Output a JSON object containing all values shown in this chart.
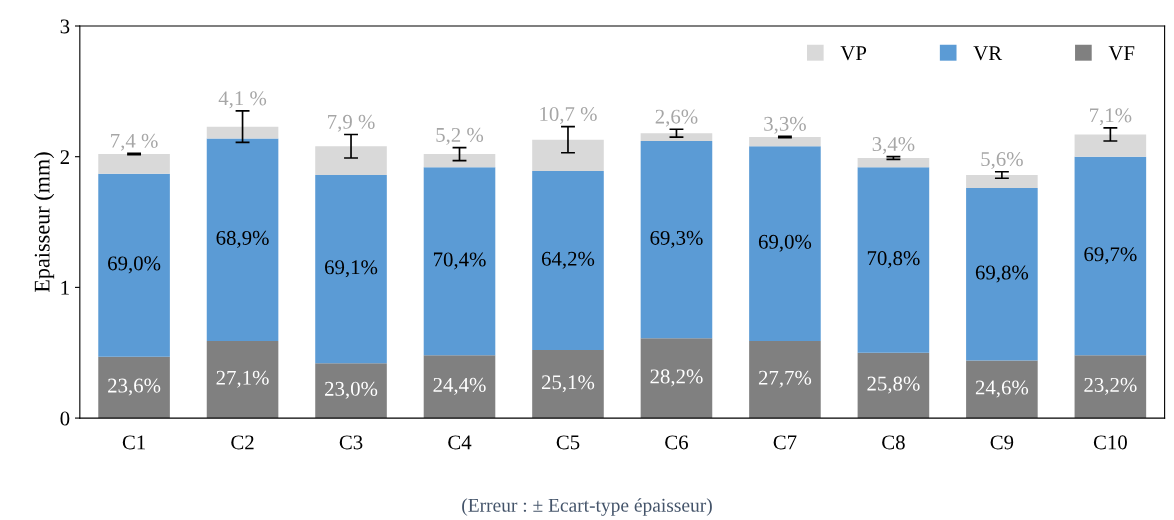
{
  "chart_data": {
    "type": "bar",
    "stacked": true,
    "ylabel": "Epaisseur (mm)",
    "categories": [
      "C1",
      "C2",
      "C3",
      "C4",
      "C5",
      "C6",
      "C7",
      "C8",
      "C9",
      "C10"
    ],
    "series": [
      {
        "name": "VF",
        "color": "#808080",
        "values": [
          0.47,
          0.59,
          0.42,
          0.48,
          0.52,
          0.61,
          0.59,
          0.5,
          0.44,
          0.48
        ]
      },
      {
        "name": "VR",
        "color": "#5b9bd5",
        "values": [
          1.4,
          1.55,
          1.44,
          1.44,
          1.37,
          1.51,
          1.49,
          1.42,
          1.32,
          1.52
        ]
      },
      {
        "name": "VP",
        "color": "#d9d9d9",
        "values": [
          0.15,
          0.09,
          0.22,
          0.1,
          0.24,
          0.06,
          0.07,
          0.07,
          0.1,
          0.17
        ],
        "errors": [
          0.005,
          0.12,
          0.09,
          0.05,
          0.1,
          0.03,
          0.005,
          0.01,
          0.025,
          0.05
        ]
      }
    ],
    "ylim": [
      0,
      3
    ],
    "yticks": [
      0,
      1,
      2,
      3
    ],
    "grid": false,
    "legend": "top right",
    "annotations": [
      {
        "text": "23,6%",
        "x": "C1",
        "y": 0.47
      },
      {
        "text": "27,1%",
        "x": "C2",
        "y": 0.59
      },
      {
        "text": "23,0%",
        "x": "C3",
        "y": 0.42
      },
      {
        "text": "24,4%",
        "x": "C4",
        "y": 0.48
      },
      {
        "text": "25,1%",
        "x": "C5",
        "y": 0.52
      },
      {
        "text": "28,2%",
        "x": "C6",
        "y": 0.61
      },
      {
        "text": "27,7%",
        "x": "C7",
        "y": 0.59
      },
      {
        "text": "25,8%",
        "x": "C8",
        "y": 0.5
      },
      {
        "text": "24,6%",
        "x": "C9",
        "y": 0.44
      },
      {
        "text": "23,2%",
        "x": "C10",
        "y": 0.48
      },
      "69,0%",
      "68,9%",
      "69,1%",
      "70,4%",
      "64,2%",
      "69,3%",
      "69,0%",
      "70,8%",
      "69,8%",
      "69,7%",
      {
        "text": "7,4 %",
        "x": "C1",
        "y": 2.02
      },
      {
        "text": "4,1 %",
        "x": "C2",
        "y": 2.23
      },
      {
        "text": "7,9 %",
        "x": "C3",
        "y": 2.08
      },
      {
        "text": "5,2 %",
        "x": "C4",
        "y": 2.02
      },
      {
        "text": "10,7 %",
        "x": "C5",
        "y": 2.13
      },
      {
        "text": "2,6%",
        "x": "C6",
        "y": 2.18
      },
      {
        "text": "3,3%",
        "x": "C7",
        "y": 2.15
      },
      {
        "text": "3,4%",
        "x": "C8",
        "y": 1.99
      },
      {
        "text": "5,6%",
        "x": "C9",
        "y": 1.86
      },
      {
        "text": "7,1%",
        "x": "C10",
        "y": 2.17
      },
      "(Erreur : ± Ecart-type épaisseur)"
    ]
  }
}
